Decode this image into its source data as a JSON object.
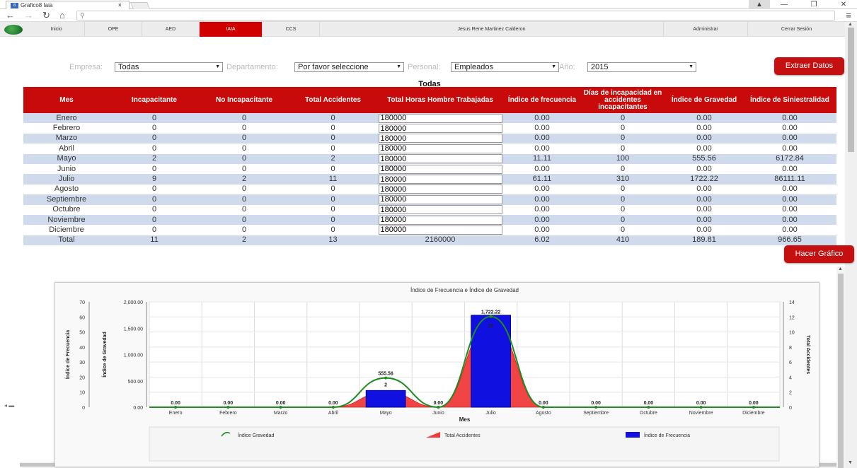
{
  "browser": {
    "tab_title": "Grafico8 Iaia",
    "favicon_label": "8",
    "url": ""
  },
  "nav": {
    "items": [
      "Inicio",
      "OPE",
      "AED",
      "IAIA",
      "CCS",
      "Jesus Rene Martinez Calderon",
      "Administrar",
      "Cerrar Sesión"
    ],
    "active": "IAIA"
  },
  "filters": {
    "empresa_label": "Empresa:",
    "empresa_value": "Todas",
    "departamento_label": "Departamento:",
    "departamento_value": "Por favor seleccione",
    "personal_label": "Personal:",
    "personal_value": "Empleados",
    "anio_label": "Año:",
    "anio_value": "2015"
  },
  "buttons": {
    "extraer": "Extraer Datos",
    "grafico": "Hacer Gráfico"
  },
  "table": {
    "title": "Todas",
    "headers": [
      "Mes",
      "Incapacitante",
      "No Incapacitante",
      "Total Accidentes",
      "Total Horas Hombre Trabajadas",
      "Índice de frecuencia",
      "Días de incapacidad en accidentes incapacitantes",
      "Índice de Gravedad",
      "Índice de Siniestralidad"
    ],
    "rows": [
      [
        "Enero",
        "0",
        "0",
        "0",
        "180000",
        "0.00",
        "0",
        "0.00",
        "0.00"
      ],
      [
        "Febrero",
        "0",
        "0",
        "0",
        "180000",
        "0.00",
        "0",
        "0.00",
        "0.00"
      ],
      [
        "Marzo",
        "0",
        "0",
        "0",
        "180000",
        "0.00",
        "0",
        "0.00",
        "0.00"
      ],
      [
        "Abril",
        "0",
        "0",
        "0",
        "180000",
        "0.00",
        "0",
        "0.00",
        "0.00"
      ],
      [
        "Mayo",
        "2",
        "0",
        "2",
        "180000",
        "11.11",
        "100",
        "555.56",
        "6172.84"
      ],
      [
        "Junio",
        "0",
        "0",
        "0",
        "180000",
        "0.00",
        "0",
        "0.00",
        "0.00"
      ],
      [
        "Julio",
        "9",
        "2",
        "11",
        "180000",
        "61.11",
        "310",
        "1722.22",
        "86111.11"
      ],
      [
        "Agosto",
        "0",
        "0",
        "0",
        "180000",
        "0.00",
        "0",
        "0.00",
        "0.00"
      ],
      [
        "Septiembre",
        "0",
        "0",
        "0",
        "180000",
        "0.00",
        "0",
        "0.00",
        "0.00"
      ],
      [
        "Octubre",
        "0",
        "0",
        "0",
        "180000",
        "0.00",
        "0",
        "0.00",
        "0.00"
      ],
      [
        "Noviembre",
        "0",
        "0",
        "0",
        "180000",
        "0.00",
        "0",
        "0.00",
        "0.00"
      ],
      [
        "Diciembre",
        "0",
        "0",
        "0",
        "180000",
        "0.00",
        "0",
        "0.00",
        "0.00"
      ]
    ],
    "total": [
      "Total",
      "11",
      "2",
      "13",
      "2160000",
      "6.02",
      "410",
      "189.81",
      "966.65"
    ]
  },
  "chart_data": {
    "type": "bar",
    "title": "Índice de Frecuencia e Índice de Gravedad",
    "xlabel": "Mes",
    "ylabel_left": "Índice de Frecuencia",
    "ylabel_left2": "Índice de Gravedad",
    "ylabel_right": "Total Accidentes",
    "categories": [
      "Enero",
      "Febrero",
      "Marzo",
      "Abril",
      "Mayo",
      "Junio",
      "Julio",
      "Agosto",
      "Septiembre",
      "Octubre",
      "Noviembre",
      "Diciembre"
    ],
    "axis_frecuencia": {
      "ticks": [
        "0",
        "10",
        "20",
        "30",
        "40",
        "50",
        "60",
        "70"
      ],
      "ylim": [
        0,
        70
      ]
    },
    "axis_gravedad": {
      "ticks": [
        "0.00",
        "500.00",
        "1,000.00",
        "1,500.00",
        "2,000.00"
      ],
      "ylim": [
        0,
        2000
      ]
    },
    "axis_accidentes": {
      "ticks": [
        "0",
        "2",
        "4",
        "6",
        "8",
        "10",
        "12",
        "14"
      ],
      "ylim": [
        0,
        14
      ]
    },
    "series": [
      {
        "name": "Índice Gravedad",
        "type": "line",
        "axis": "gravedad",
        "color": "#1e8c1e",
        "values": [
          0,
          0,
          0,
          0,
          555.56,
          0,
          1722.22,
          0,
          0,
          0,
          0,
          0
        ],
        "labels": [
          "0.00",
          "0.00",
          "0.00",
          "0.00",
          "555.56",
          "0.00",
          "1,722.22",
          "0.00",
          "0.00",
          "0.00",
          "0.00",
          "0.00"
        ]
      },
      {
        "name": "Total Accidentes",
        "type": "area",
        "axis": "accidentes",
        "color": "#f03b3b",
        "values": [
          0,
          0,
          0,
          0,
          2,
          0,
          11,
          0,
          0,
          0,
          0,
          0
        ],
        "labels": [
          "0",
          "0",
          "0",
          "0",
          "2",
          "0",
          "11",
          "0",
          "0",
          "0",
          "0",
          "0"
        ]
      },
      {
        "name": "Índice de Frecuencia",
        "type": "bar",
        "axis": "frecuencia",
        "color": "#1010e0",
        "values": [
          0,
          0,
          0,
          0,
          11.11,
          0,
          61.11,
          0,
          0,
          0,
          0,
          0
        ]
      }
    ],
    "grid": true,
    "legend": "bottom"
  }
}
